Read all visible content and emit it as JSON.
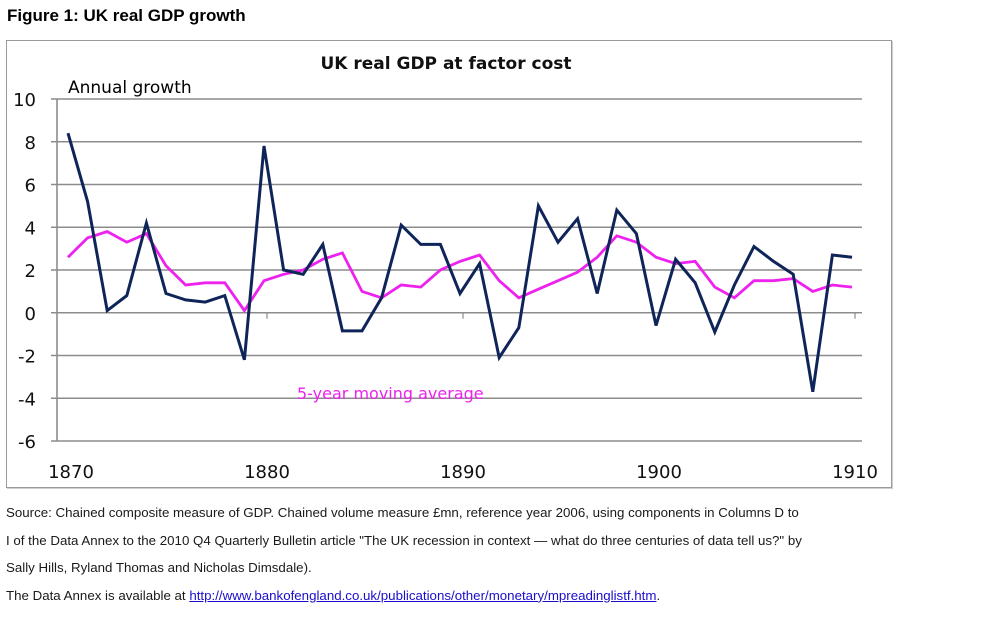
{
  "figure": {
    "title": "Figure 1: UK real GDP growth"
  },
  "chart_data": {
    "type": "line",
    "title": "UK real GDP at factor cost",
    "ylabel": "Annual growth",
    "xlabel": "",
    "ylim": [
      -6,
      10
    ],
    "yticks": [
      -6,
      -4,
      -2,
      0,
      2,
      4,
      6,
      8,
      10
    ],
    "ytick_labels": [
      "-6",
      "-4",
      "-2",
      "0",
      "2",
      "4",
      "6",
      "8",
      "10"
    ],
    "xlim": [
      1870,
      1910
    ],
    "xticks": [
      1870,
      1880,
      1890,
      1900,
      1910
    ],
    "xtick_labels": [
      "1870",
      "1880",
      "1890",
      "1900",
      "1910"
    ],
    "grid": "horizontal",
    "x": [
      1870,
      1871,
      1872,
      1873,
      1874,
      1875,
      1876,
      1877,
      1878,
      1879,
      1880,
      1881,
      1882,
      1883,
      1884,
      1885,
      1886,
      1887,
      1888,
      1889,
      1890,
      1891,
      1892,
      1893,
      1894,
      1895,
      1896,
      1897,
      1898,
      1899,
      1900,
      1901,
      1902,
      1903,
      1904,
      1905,
      1906,
      1907,
      1908,
      1909,
      1910
    ],
    "series": [
      {
        "name": "Annual growth",
        "color": "#0f2459",
        "values": [
          8.4,
          5.2,
          0.1,
          0.8,
          4.2,
          0.9,
          0.6,
          0.5,
          0.8,
          -2.2,
          7.8,
          2.0,
          1.8,
          3.2,
          -0.85,
          -0.85,
          0.7,
          4.1,
          3.2,
          3.2,
          0.9,
          2.3,
          -2.1,
          -0.7,
          5.0,
          3.3,
          4.4,
          0.9,
          4.8,
          3.7,
          -0.6,
          2.5,
          1.4,
          -0.9,
          1.3,
          3.1,
          2.4,
          1.8,
          -3.7,
          2.7,
          2.6
        ]
      },
      {
        "name": "5-year moving average",
        "color": "#ee22ee",
        "values": [
          2.6,
          3.5,
          3.8,
          3.3,
          3.7,
          2.2,
          1.3,
          1.4,
          1.4,
          0.1,
          1.5,
          1.8,
          2.0,
          2.5,
          2.8,
          1.0,
          0.7,
          1.3,
          1.2,
          2.0,
          2.4,
          2.7,
          1.5,
          0.7,
          1.1,
          1.5,
          1.9,
          2.6,
          3.6,
          3.3,
          2.6,
          2.3,
          2.4,
          1.2,
          0.7,
          1.5,
          1.5,
          1.6,
          1.0,
          1.3,
          1.2
        ]
      }
    ],
    "annotations": [
      {
        "text": "Annual growth",
        "color": "#000000"
      },
      {
        "text": "5-year moving average",
        "color": "#ee22ee"
      }
    ]
  },
  "caption": {
    "line1": "Source: Chained composite measure of GDP.  Chained volume measure £mn, reference year 2006, using components in Columns D to",
    "line2": "I of the Data Annex to the 2010 Q4 Quarterly Bulletin article \"The UK recession in context — what do three centuries of data tell us?\" by",
    "line3": "Sally Hills, Ryland Thomas and Nicholas Dimsdale).",
    "line4_prefix": "The Data Annex is available at ",
    "link": "http://www.bankofengland.co.uk/publications/other/monetary/mpreadinglistf.htm",
    "line4_suffix": "."
  }
}
